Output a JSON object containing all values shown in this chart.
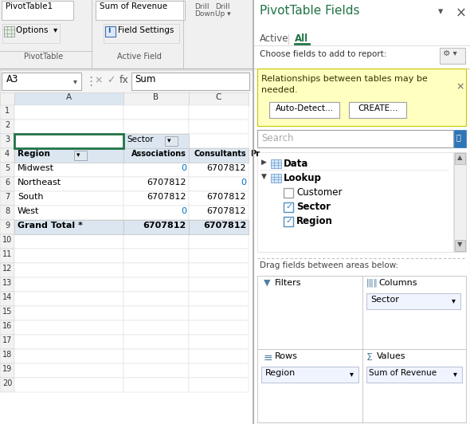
{
  "bg_color": "#ffffff",
  "ribbon_bg": "#f0f0f0",
  "header_blue": "#dce6f1",
  "selected_cell_border": "#217346",
  "grand_total_bg": "#dce6f1",
  "yellow_box_color": "#ffffc0",
  "yellow_box_border": "#c8c800",
  "teal_color": "#217346",
  "blue_color": "#2E75B6",
  "ribbon_text": "PivotTable1",
  "ribbon_text2": "Sum of Revenue",
  "pivot_data": [
    [
      "Midwest",
      "0",
      "6707812"
    ],
    [
      "Northeast",
      "6707812",
      "0"
    ],
    [
      "South",
      "6707812",
      "6707812"
    ],
    [
      "West",
      "0",
      "6707812"
    ]
  ],
  "grand_total_row": [
    "Grand Total *",
    "6707812",
    "6707812"
  ],
  "panel_title": "PivotTable Fields",
  "choose_text": "Choose fields to add to report:",
  "yellow_text1": "Relationships between tables may be",
  "yellow_text2": "needed.",
  "btn_autodetect": "Auto-Detect...",
  "btn_create": "CREATE...",
  "search_text": "Search",
  "drag_text": "Drag fields between areas below:",
  "filters_label": "Filters",
  "columns_label": "Columns",
  "rows_label": "Rows",
  "values_label": "Values",
  "columns_item": "Sector",
  "rows_item": "Region",
  "values_item": "Sum of Revenue"
}
